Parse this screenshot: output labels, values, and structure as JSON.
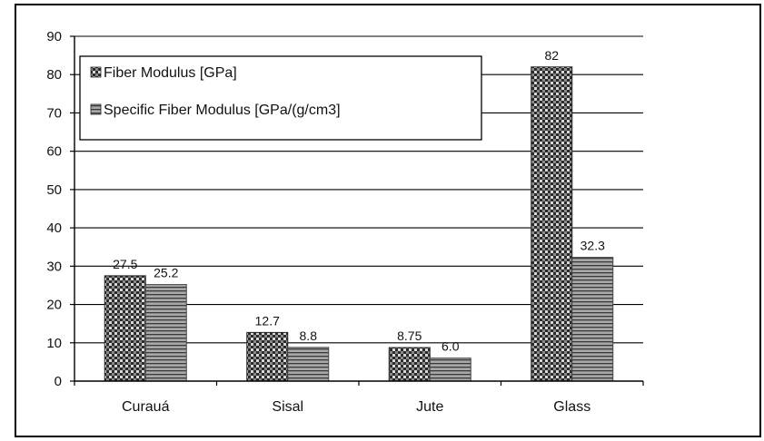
{
  "chart_data": {
    "type": "bar",
    "categories": [
      "Curauá",
      "Sisal",
      "Jute",
      "Glass"
    ],
    "series": [
      {
        "name": "Fiber Modulus [GPa]",
        "values": [
          27.5,
          12.7,
          8.75,
          82
        ],
        "labels": [
          "27.5",
          "12.7",
          "8.75",
          "82"
        ],
        "pattern": "checkered"
      },
      {
        "name": "Specific Fiber Modulus [GPa/(g/cm3]",
        "values": [
          25.2,
          8.8,
          6.0,
          32.3
        ],
        "labels": [
          "25.2",
          "8.8",
          "6.0",
          "32.3"
        ],
        "pattern": "horizontal-stripes"
      }
    ],
    "ylim": [
      0,
      90
    ],
    "yticks": [
      0,
      10,
      20,
      30,
      40,
      50,
      60,
      70,
      80,
      90
    ],
    "grid": true,
    "legend_position": "top-left"
  }
}
